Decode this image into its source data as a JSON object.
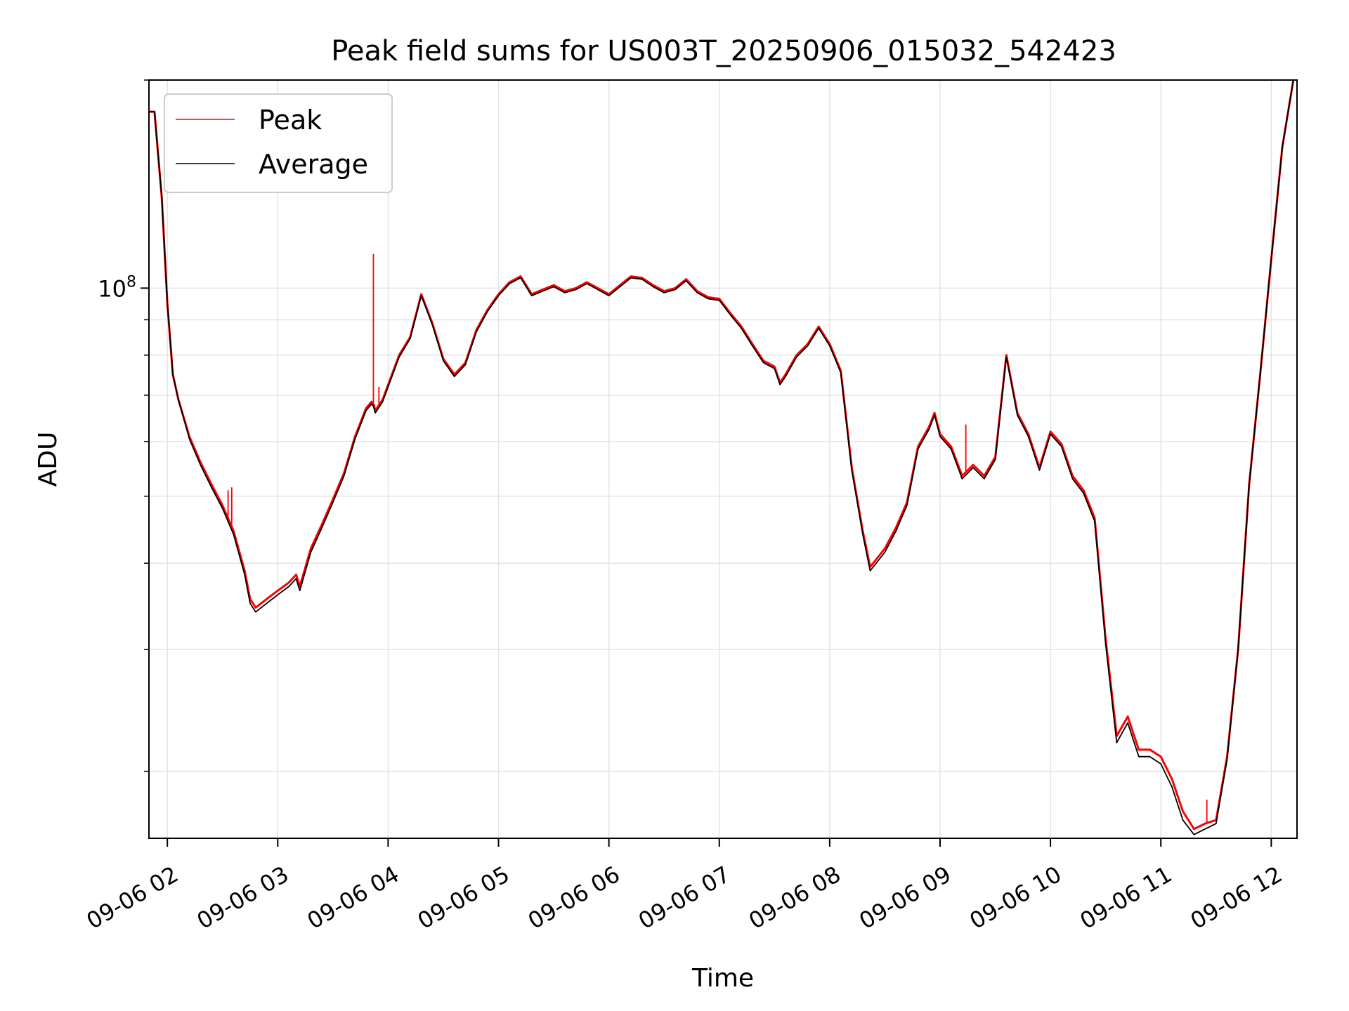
{
  "chart_data": {
    "type": "line",
    "title": "Peak field sums for US003T_20250906_015032_542423",
    "xlabel": "Time",
    "ylabel": "ADU",
    "yscale": "log",
    "grid": true,
    "legend_position": "top-left",
    "x_tick_labels": [
      "09-06 02",
      "09-06 03",
      "09-06 04",
      "09-06 05",
      "09-06 06",
      "09-06 07",
      "09-06 08",
      "09-06 09",
      "09-06 10",
      "09-06 11",
      "09-06 12"
    ],
    "x_tick_hours": [
      2,
      3,
      4,
      5,
      6,
      7,
      8,
      9,
      10,
      11,
      12
    ],
    "y_major_tick_label": "10^8",
    "y_major_tick_base": "10",
    "y_major_tick_exp": "8",
    "y_major_tick_value": 100000000,
    "y_minor_ticks": [
      20000000,
      30000000,
      40000000,
      50000000,
      60000000,
      70000000,
      80000000,
      90000000,
      200000000
    ],
    "xlim": [
      "2025-09-06 01:50",
      "2025-09-06 12:14"
    ],
    "ylim": [
      16000000,
      200000000
    ],
    "series": [
      {
        "name": "Peak",
        "color": "#ff0000",
        "x": [
          "2025-09-06 01:50",
          "2025-09-06 01:53",
          "2025-09-06 01:57",
          "2025-09-06 02:00",
          "2025-09-06 02:03",
          "2025-09-06 02:06",
          "2025-09-06 02:12",
          "2025-09-06 02:18",
          "2025-09-06 02:24",
          "2025-09-06 02:30",
          "2025-09-06 02:36",
          "2025-09-06 02:42",
          "2025-09-06 02:45",
          "2025-09-06 02:48",
          "2025-09-06 02:54",
          "2025-09-06 03:00",
          "2025-09-06 03:06",
          "2025-09-06 03:10",
          "2025-09-06 03:12",
          "2025-09-06 03:18",
          "2025-09-06 03:24",
          "2025-09-06 03:30",
          "2025-09-06 03:36",
          "2025-09-06 03:42",
          "2025-09-06 03:48",
          "2025-09-06 03:51",
          "2025-09-06 03:52",
          "2025-09-06 03:53",
          "2025-09-06 03:57",
          "2025-09-06 04:06",
          "2025-09-06 04:12",
          "2025-09-06 04:18",
          "2025-09-06 04:24",
          "2025-09-06 04:30",
          "2025-09-06 04:36",
          "2025-09-06 04:42",
          "2025-09-06 04:48",
          "2025-09-06 04:54",
          "2025-09-06 05:00",
          "2025-09-06 05:06",
          "2025-09-06 05:12",
          "2025-09-06 05:18",
          "2025-09-06 05:24",
          "2025-09-06 05:30",
          "2025-09-06 05:36",
          "2025-09-06 05:42",
          "2025-09-06 05:48",
          "2025-09-06 05:54",
          "2025-09-06 06:00",
          "2025-09-06 06:06",
          "2025-09-06 06:12",
          "2025-09-06 06:18",
          "2025-09-06 06:24",
          "2025-09-06 06:30",
          "2025-09-06 06:36",
          "2025-09-06 06:42",
          "2025-09-06 06:48",
          "2025-09-06 06:54",
          "2025-09-06 07:00",
          "2025-09-06 07:06",
          "2025-09-06 07:12",
          "2025-09-06 07:18",
          "2025-09-06 07:24",
          "2025-09-06 07:30",
          "2025-09-06 07:33",
          "2025-09-06 07:36",
          "2025-09-06 07:42",
          "2025-09-06 07:48",
          "2025-09-06 07:54",
          "2025-09-06 08:00",
          "2025-09-06 08:06",
          "2025-09-06 08:12",
          "2025-09-06 08:18",
          "2025-09-06 08:22",
          "2025-09-06 08:30",
          "2025-09-06 08:36",
          "2025-09-06 08:42",
          "2025-09-06 08:48",
          "2025-09-06 08:54",
          "2025-09-06 08:57",
          "2025-09-06 09:00",
          "2025-09-06 09:06",
          "2025-09-06 09:12",
          "2025-09-06 09:18",
          "2025-09-06 09:24",
          "2025-09-06 09:30",
          "2025-09-06 09:36",
          "2025-09-06 09:42",
          "2025-09-06 09:48",
          "2025-09-06 09:54",
          "2025-09-06 10:00",
          "2025-09-06 10:06",
          "2025-09-06 10:12",
          "2025-09-06 10:18",
          "2025-09-06 10:24",
          "2025-09-06 10:30",
          "2025-09-06 10:36",
          "2025-09-06 10:42",
          "2025-09-06 10:48",
          "2025-09-06 10:54",
          "2025-09-06 11:00",
          "2025-09-06 11:06",
          "2025-09-06 11:12",
          "2025-09-06 11:18",
          "2025-09-06 11:24",
          "2025-09-06 11:30",
          "2025-09-06 11:36",
          "2025-09-06 11:42",
          "2025-09-06 11:48",
          "2025-09-06 11:54",
          "2025-09-06 12:00",
          "2025-09-06 12:06",
          "2025-09-06 12:12"
        ],
        "y": [
          180000000,
          180000000,
          135000000,
          95000000,
          75000000,
          69000000,
          61000000,
          56000000,
          52000000,
          48500000,
          44500000,
          39000000,
          35500000,
          34500000,
          35500000,
          36500000,
          37500000,
          38500000,
          37000000,
          42000000,
          45500000,
          49500000,
          54000000,
          61000000,
          67000000,
          68500000,
          68000000,
          66500000,
          69000000,
          80000000,
          85000000,
          98000000,
          89000000,
          79000000,
          75000000,
          78000000,
          87000000,
          93000000,
          98000000,
          102000000,
          104000000,
          98000000,
          99500000,
          101000000,
          99000000,
          100000000,
          102000000,
          100000000,
          98000000,
          101000000,
          104000000,
          103500000,
          101000000,
          99000000,
          100000000,
          103000000,
          99000000,
          97000000,
          96500000,
          92000000,
          88000000,
          83000000,
          78500000,
          77000000,
          73000000,
          75000000,
          80000000,
          83000000,
          88000000,
          83000000,
          76000000,
          55000000,
          44500000,
          39500000,
          42000000,
          45000000,
          49000000,
          59000000,
          63000000,
          66000000,
          61500000,
          59000000,
          53500000,
          55500000,
          53500000,
          57000000,
          80000000,
          66000000,
          61500000,
          55000000,
          62000000,
          59500000,
          53500000,
          51000000,
          46500000,
          31000000,
          22500000,
          24000000,
          21500000,
          21500000,
          21000000,
          19500000,
          17500000,
          16500000,
          16800000,
          17000000,
          21000000,
          30000000,
          52000000,
          75000000,
          110000000,
          160000000,
          200000000
        ],
        "spikes": [
          {
            "x": "2025-09-06 02:33",
            "y": 51000000
          },
          {
            "x": "2025-09-06 02:35",
            "y": 51500000
          },
          {
            "x": "2025-09-06 03:52",
            "y": 112000000
          },
          {
            "x": "2025-09-06 03:55",
            "y": 72000000
          },
          {
            "x": "2025-09-06 09:14",
            "y": 63500000
          },
          {
            "x": "2025-09-06 11:25",
            "y": 18200000
          }
        ]
      },
      {
        "name": "Average",
        "color": "#000000",
        "x": [
          "2025-09-06 01:50",
          "2025-09-06 01:53",
          "2025-09-06 01:57",
          "2025-09-06 02:00",
          "2025-09-06 02:03",
          "2025-09-06 02:06",
          "2025-09-06 02:12",
          "2025-09-06 02:18",
          "2025-09-06 02:24",
          "2025-09-06 02:30",
          "2025-09-06 02:36",
          "2025-09-06 02:42",
          "2025-09-06 02:45",
          "2025-09-06 02:48",
          "2025-09-06 02:54",
          "2025-09-06 03:00",
          "2025-09-06 03:06",
          "2025-09-06 03:10",
          "2025-09-06 03:12",
          "2025-09-06 03:18",
          "2025-09-06 03:24",
          "2025-09-06 03:30",
          "2025-09-06 03:36",
          "2025-09-06 03:42",
          "2025-09-06 03:48",
          "2025-09-06 03:51",
          "2025-09-06 03:52",
          "2025-09-06 03:53",
          "2025-09-06 03:57",
          "2025-09-06 04:06",
          "2025-09-06 04:12",
          "2025-09-06 04:18",
          "2025-09-06 04:24",
          "2025-09-06 04:30",
          "2025-09-06 04:36",
          "2025-09-06 04:42",
          "2025-09-06 04:48",
          "2025-09-06 04:54",
          "2025-09-06 05:00",
          "2025-09-06 05:06",
          "2025-09-06 05:12",
          "2025-09-06 05:18",
          "2025-09-06 05:24",
          "2025-09-06 05:30",
          "2025-09-06 05:36",
          "2025-09-06 05:42",
          "2025-09-06 05:48",
          "2025-09-06 05:54",
          "2025-09-06 06:00",
          "2025-09-06 06:06",
          "2025-09-06 06:12",
          "2025-09-06 06:18",
          "2025-09-06 06:24",
          "2025-09-06 06:30",
          "2025-09-06 06:36",
          "2025-09-06 06:42",
          "2025-09-06 06:48",
          "2025-09-06 06:54",
          "2025-09-06 07:00",
          "2025-09-06 07:06",
          "2025-09-06 07:12",
          "2025-09-06 07:18",
          "2025-09-06 07:24",
          "2025-09-06 07:30",
          "2025-09-06 07:33",
          "2025-09-06 07:36",
          "2025-09-06 07:42",
          "2025-09-06 07:48",
          "2025-09-06 07:54",
          "2025-09-06 08:00",
          "2025-09-06 08:06",
          "2025-09-06 08:12",
          "2025-09-06 08:18",
          "2025-09-06 08:22",
          "2025-09-06 08:30",
          "2025-09-06 08:36",
          "2025-09-06 08:42",
          "2025-09-06 08:48",
          "2025-09-06 08:54",
          "2025-09-06 08:57",
          "2025-09-06 09:00",
          "2025-09-06 09:06",
          "2025-09-06 09:12",
          "2025-09-06 09:18",
          "2025-09-06 09:24",
          "2025-09-06 09:30",
          "2025-09-06 09:36",
          "2025-09-06 09:42",
          "2025-09-06 09:48",
          "2025-09-06 09:54",
          "2025-09-06 10:00",
          "2025-09-06 10:06",
          "2025-09-06 10:12",
          "2025-09-06 10:18",
          "2025-09-06 10:24",
          "2025-09-06 10:30",
          "2025-09-06 10:36",
          "2025-09-06 10:42",
          "2025-09-06 10:48",
          "2025-09-06 10:54",
          "2025-09-06 11:00",
          "2025-09-06 11:06",
          "2025-09-06 11:12",
          "2025-09-06 11:18",
          "2025-09-06 11:24",
          "2025-09-06 11:30",
          "2025-09-06 11:36",
          "2025-09-06 11:42",
          "2025-09-06 11:48",
          "2025-09-06 11:54",
          "2025-09-06 12:00",
          "2025-09-06 12:06",
          "2025-09-06 12:12"
        ],
        "y": [
          180000000,
          180000000,
          135000000,
          95000000,
          75000000,
          69000000,
          60500000,
          55500000,
          51500000,
          48000000,
          44000000,
          38500000,
          35000000,
          34000000,
          35000000,
          36000000,
          37000000,
          38000000,
          36500000,
          41500000,
          45000000,
          49000000,
          53500000,
          60500000,
          66500000,
          68000000,
          67500000,
          66000000,
          68500000,
          79500000,
          84500000,
          97500000,
          88500000,
          78500000,
          74500000,
          77500000,
          86500000,
          92500000,
          97500000,
          101500000,
          103500000,
          97500000,
          99000000,
          100500000,
          98500000,
          99500000,
          101500000,
          99500000,
          97500000,
          100500000,
          103500000,
          103000000,
          100500000,
          98500000,
          99500000,
          102500000,
          98500000,
          96500000,
          96000000,
          91500000,
          87500000,
          82500000,
          78000000,
          76500000,
          72500000,
          74500000,
          79500000,
          82500000,
          87500000,
          82500000,
          75500000,
          54500000,
          44000000,
          39000000,
          41500000,
          44500000,
          48500000,
          58500000,
          62500000,
          65500000,
          61000000,
          58500000,
          53000000,
          55000000,
          53000000,
          56500000,
          79500000,
          65500000,
          61000000,
          54500000,
          61500000,
          59000000,
          53000000,
          50500000,
          46000000,
          30500000,
          22000000,
          23500000,
          21000000,
          21000000,
          20500000,
          19000000,
          17000000,
          16200000,
          16500000,
          16800000,
          20800000,
          30000000,
          52000000,
          75000000,
          110000000,
          160000000,
          200000000
        ]
      }
    ]
  }
}
